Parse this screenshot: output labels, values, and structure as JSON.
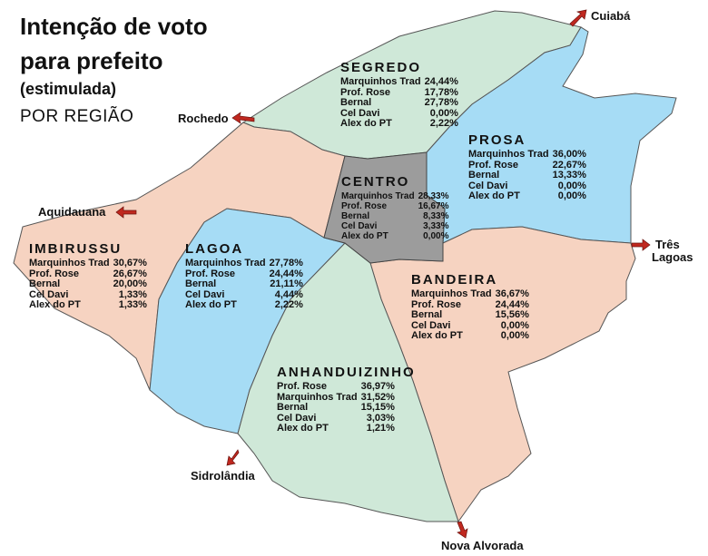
{
  "title": {
    "line1": "Intenção de voto",
    "line2": "para prefeito",
    "line3": "(estimulada)",
    "line4": "POR REGIÃO"
  },
  "colors": {
    "green": "#cfe8d8",
    "blue": "#a6dcf5",
    "peach": "#f6d3c1",
    "gray": "#9c9c9c",
    "arrow": "#c0281f"
  },
  "cities": {
    "cuiaba": "Cuiabá",
    "rochedo": "Rochedo",
    "aquidauana": "Aquidauana",
    "tres_lagoas_1": "Três",
    "tres_lagoas_2": "Lagoas",
    "sidrolandia": "Sidrolândia",
    "nova_alvorada": "Nova Alvorada"
  },
  "regions": {
    "segredo": {
      "name": "SEGREDO",
      "rows": [
        {
          "label": "Marquinhos Trad",
          "value": "24,44%"
        },
        {
          "label": "Prof. Rose",
          "value": "17,78%"
        },
        {
          "label": "Bernal",
          "value": "27,78%"
        },
        {
          "label": "Cel Davi",
          "value": "0,00%"
        },
        {
          "label": "Alex do PT",
          "value": "2,22%"
        }
      ]
    },
    "prosa": {
      "name": "PROSA",
      "rows": [
        {
          "label": "Marquinhos Trad",
          "value": "36,00%"
        },
        {
          "label": "Prof. Rose",
          "value": "22,67%"
        },
        {
          "label": "Bernal",
          "value": "13,33%"
        },
        {
          "label": "Cel Davi",
          "value": "0,00%"
        },
        {
          "label": "Alex do PT",
          "value": "0,00%"
        }
      ]
    },
    "centro": {
      "name": "CENTRO",
      "rows": [
        {
          "label": "Marquinhos Trad",
          "value": "28,33%"
        },
        {
          "label": "Prof. Rose",
          "value": "16,67%"
        },
        {
          "label": "Bernal",
          "value": "8,33%"
        },
        {
          "label": "Cel Davi",
          "value": "3,33%"
        },
        {
          "label": "Alex do PT",
          "value": "0,00%"
        }
      ]
    },
    "imbirussu": {
      "name": "IMBIRUSSU",
      "rows": [
        {
          "label": "Marquinhos Trad",
          "value": "30,67%"
        },
        {
          "label": "Prof. Rose",
          "value": "26,67%"
        },
        {
          "label": "Bernal",
          "value": "20,00%"
        },
        {
          "label": "Cel Davi",
          "value": "1,33%"
        },
        {
          "label": "Alex do PT",
          "value": "1,33%"
        }
      ]
    },
    "lagoa": {
      "name": "LAGOA",
      "rows": [
        {
          "label": "Marquinhos Trad",
          "value": "27,78%"
        },
        {
          "label": "Prof. Rose",
          "value": "24,44%"
        },
        {
          "label": "Bernal",
          "value": "21,11%"
        },
        {
          "label": "Cel Davi",
          "value": "4,44%"
        },
        {
          "label": "Alex do PT",
          "value": "2,22%"
        }
      ]
    },
    "bandeira": {
      "name": "BANDEIRA",
      "rows": [
        {
          "label": "Marquinhos Trad",
          "value": "36,67%"
        },
        {
          "label": "Prof. Rose",
          "value": "24,44%"
        },
        {
          "label": "Bernal",
          "value": "15,56%"
        },
        {
          "label": "Cel Davi",
          "value": "0,00%"
        },
        {
          "label": "Alex do PT",
          "value": "0,00%"
        }
      ]
    },
    "anhanduizinho": {
      "name": "ANHANDUIZINHO",
      "rows": [
        {
          "label": "Prof. Rose",
          "value": "36,97%"
        },
        {
          "label": "Marquinhos Trad",
          "value": "31,52%"
        },
        {
          "label": "Bernal",
          "value": "15,15%"
        },
        {
          "label": "Cel Davi",
          "value": "3,03%"
        },
        {
          "label": "Alex do PT",
          "value": "1,21%"
        }
      ]
    }
  }
}
